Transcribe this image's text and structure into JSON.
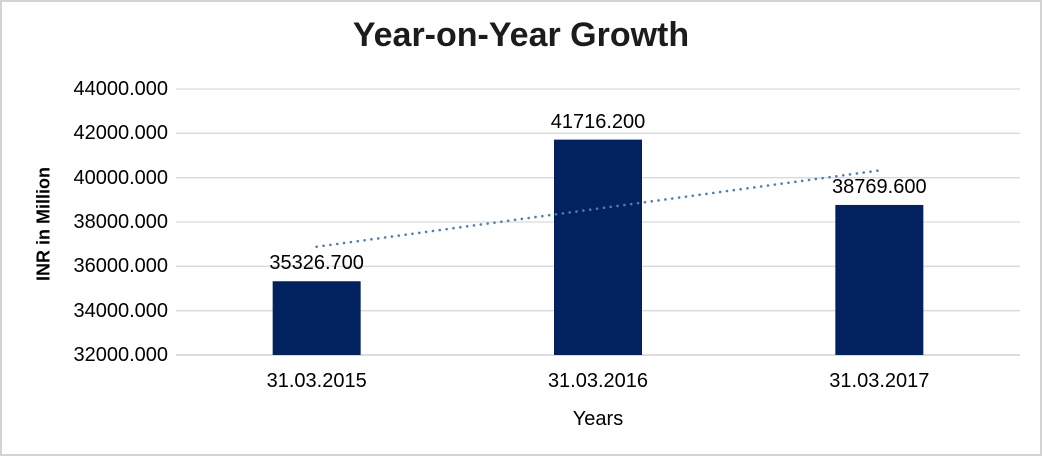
{
  "chart_data": {
    "type": "bar",
    "title": "Year-on-Year Growth",
    "xlabel": "Years",
    "ylabel": "INR in Million",
    "categories": [
      "31.03.2015",
      "31.03.2016",
      "31.03.2017"
    ],
    "values": [
      35326.7,
      41716.2,
      38769.6
    ],
    "data_labels": [
      "35326.700",
      "41716.200",
      "38769.600"
    ],
    "y_ticks": [
      "44000.000",
      "42000.000",
      "40000.000",
      "38000.000",
      "36000.000",
      "34000.000",
      "32000.000"
    ],
    "ylim": [
      32000,
      44000
    ],
    "y_step": 2000,
    "grid": "horizontal",
    "legend": "none",
    "bar_color": "#02225f",
    "trendline": {
      "style": "dotted",
      "color": "#4a7ebb",
      "start_value": 36882.7,
      "end_value": 40325.6
    }
  },
  "colors": {
    "gridline": "#d9d9d9",
    "axis_line": "#c6c6c6",
    "border": "#d3d3d3",
    "text": "#000000"
  }
}
